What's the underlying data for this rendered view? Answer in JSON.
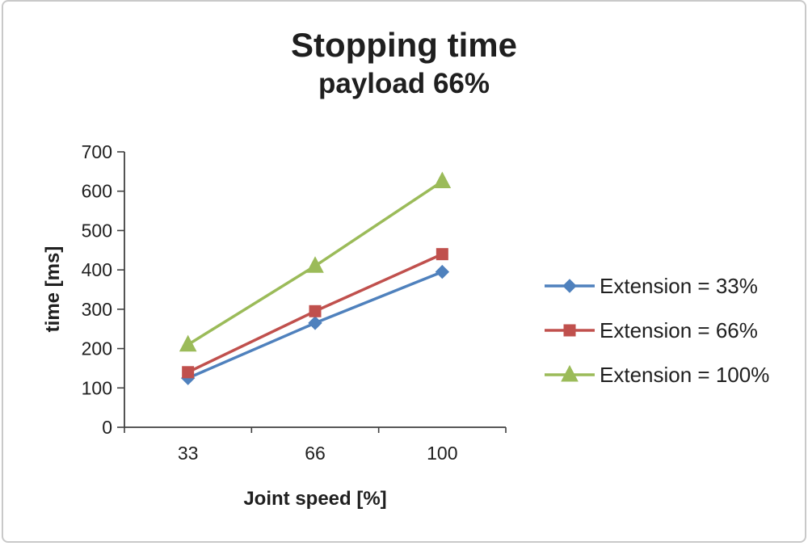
{
  "chart_data": {
    "type": "line",
    "title": "Stopping time",
    "subtitle": "payload 66%",
    "xlabel": "Joint speed [%]",
    "ylabel": "time [ms]",
    "categories": [
      "33",
      "66",
      "100"
    ],
    "series": [
      {
        "name": "Extension = 33%",
        "color": "#4F81BD",
        "marker": "diamond",
        "values": [
          125,
          265,
          395
        ]
      },
      {
        "name": "Extension = 66%",
        "color": "#C0504D",
        "marker": "square",
        "values": [
          140,
          295,
          440
        ]
      },
      {
        "name": "Extension = 100%",
        "color": "#9BBB59",
        "marker": "triangle",
        "values": [
          210,
          410,
          625
        ]
      }
    ],
    "ylim": [
      0,
      700
    ],
    "ytick_step": 100,
    "grid": false,
    "legend_position": "right",
    "axis_color": "#404040"
  }
}
